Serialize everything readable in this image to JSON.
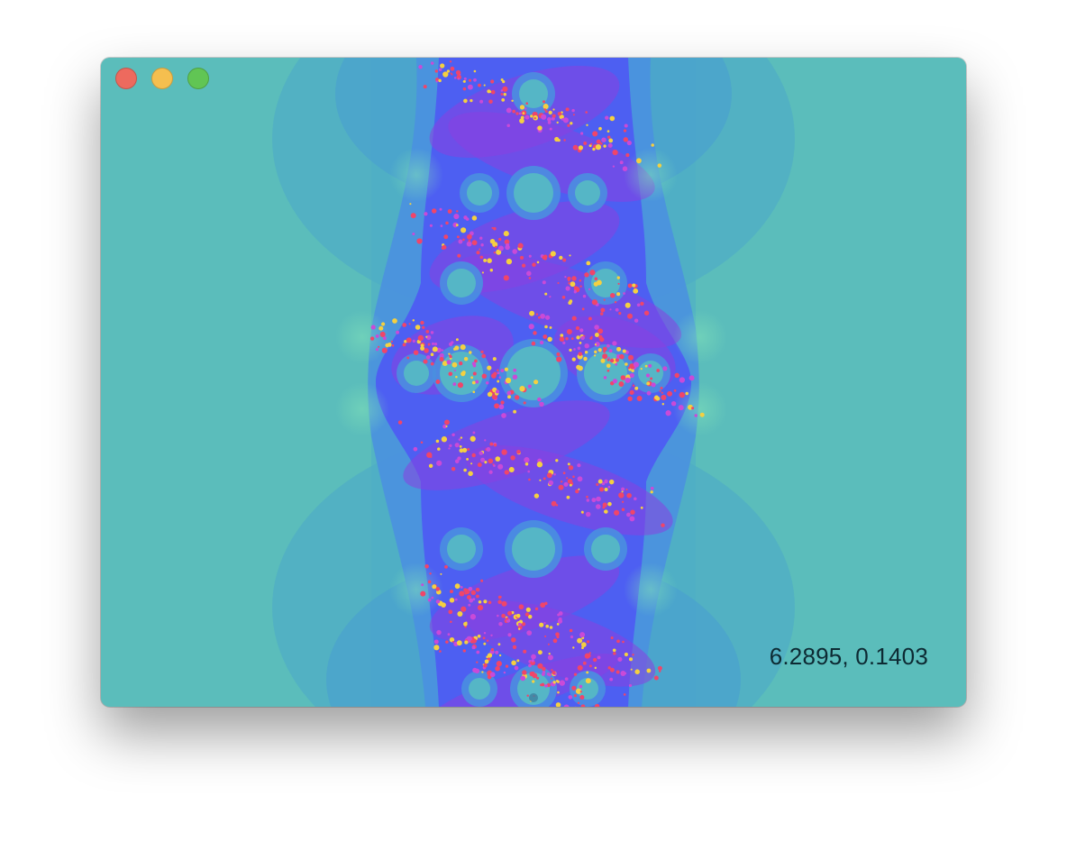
{
  "window": {
    "controls": [
      {
        "name": "close",
        "color": "#ed6a5e"
      },
      {
        "name": "minimize",
        "color": "#f5bf4f"
      },
      {
        "name": "zoom",
        "color": "#61c554"
      }
    ]
  },
  "viewer": {
    "coordinate_readout": "6.2895, 0.1403",
    "palette": {
      "outer": "#5bbdbb",
      "mid": "#4aa6cb",
      "inner": "#4b5ff0",
      "band": "#8a3fe0",
      "hot": "#f0456a",
      "spark": "#f5d040"
    }
  }
}
